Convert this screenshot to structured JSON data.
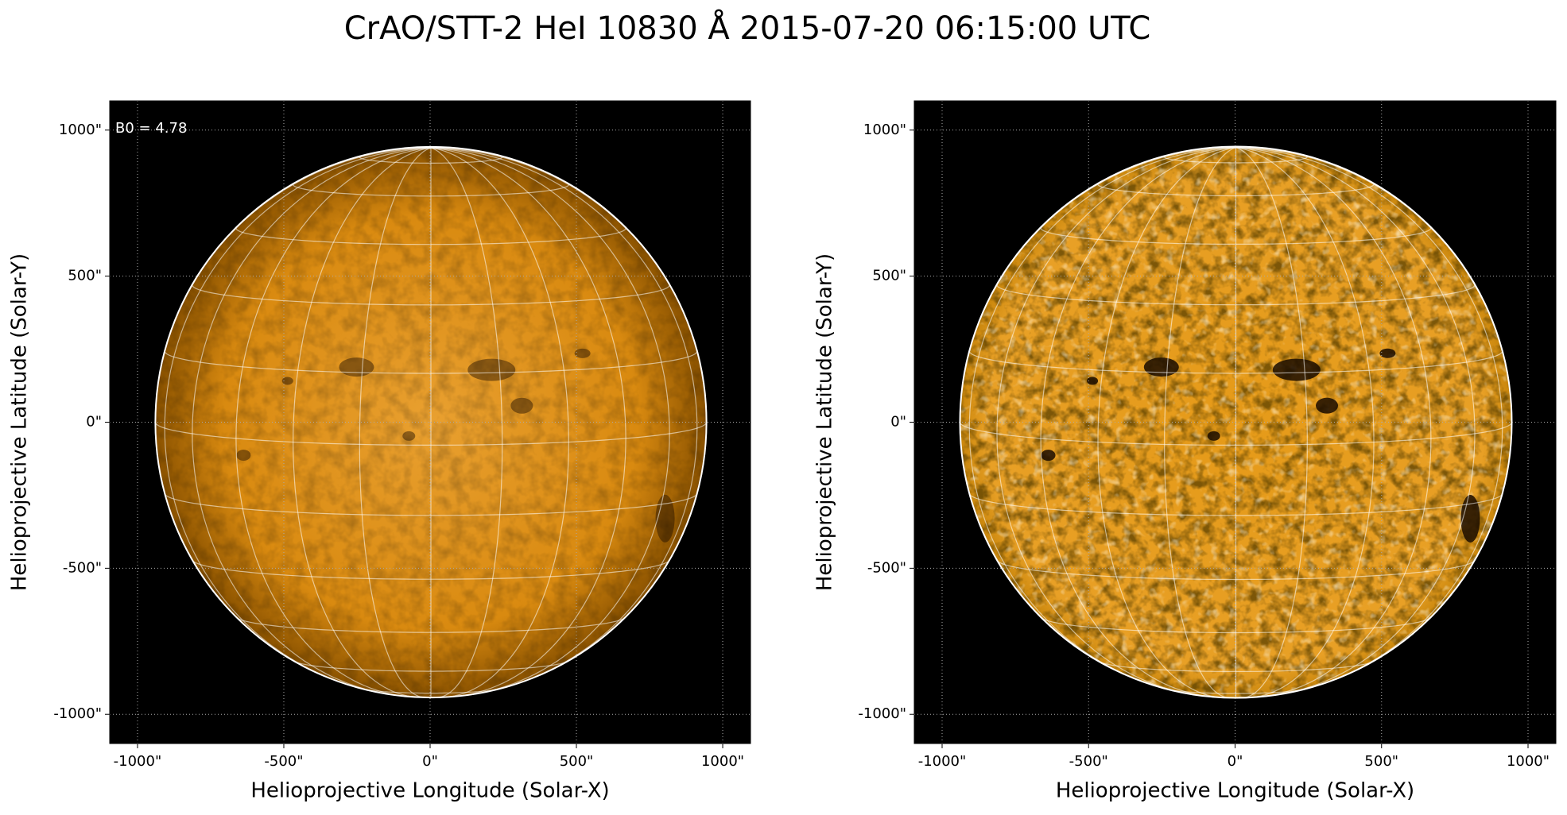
{
  "title": "CrAO/STT-2 HeI 10830 Å 2015-07-20 06:15:00 UTC",
  "chart_data": [
    {
      "type": "image",
      "annotation": "B0 = 4.78",
      "xlabel": "Helioprojective Longitude (Solar-X)",
      "ylabel": "Helioprojective Latitude (Solar-Y)",
      "xlim": [
        -1095,
        1095
      ],
      "ylim": [
        -1100,
        1100
      ],
      "grid": true,
      "xticks": [
        {
          "value": -1000,
          "label": "-1000\""
        },
        {
          "value": -500,
          "label": "-500\""
        },
        {
          "value": 0,
          "label": "0\""
        },
        {
          "value": 500,
          "label": "500\""
        },
        {
          "value": 1000,
          "label": "1000\""
        }
      ],
      "yticks": [
        {
          "value": -1000,
          "label": "-1000\""
        },
        {
          "value": -500,
          "label": "-500\""
        },
        {
          "value": 0,
          "label": "0\""
        },
        {
          "value": 500,
          "label": "500\""
        },
        {
          "value": 1000,
          "label": "1000\""
        }
      ]
    },
    {
      "type": "image",
      "xlabel": "Helioprojective Longitude (Solar-X)",
      "ylabel": "Helioprojective Latitude (Solar-Y)",
      "xlim": [
        -1095,
        1095
      ],
      "ylim": [
        -1100,
        1100
      ],
      "grid": true,
      "xticks": [
        {
          "value": -1000,
          "label": "-1000\""
        },
        {
          "value": -500,
          "label": "-500\""
        },
        {
          "value": 0,
          "label": "0\""
        },
        {
          "value": 500,
          "label": "500\""
        },
        {
          "value": 1000,
          "label": "1000\""
        }
      ],
      "yticks": [
        {
          "value": -1000,
          "label": "-1000\""
        },
        {
          "value": -500,
          "label": "-500\""
        },
        {
          "value": 0,
          "label": "0\""
        },
        {
          "value": 500,
          "label": "500\""
        },
        {
          "value": 1000,
          "label": "1000\""
        }
      ]
    }
  ]
}
